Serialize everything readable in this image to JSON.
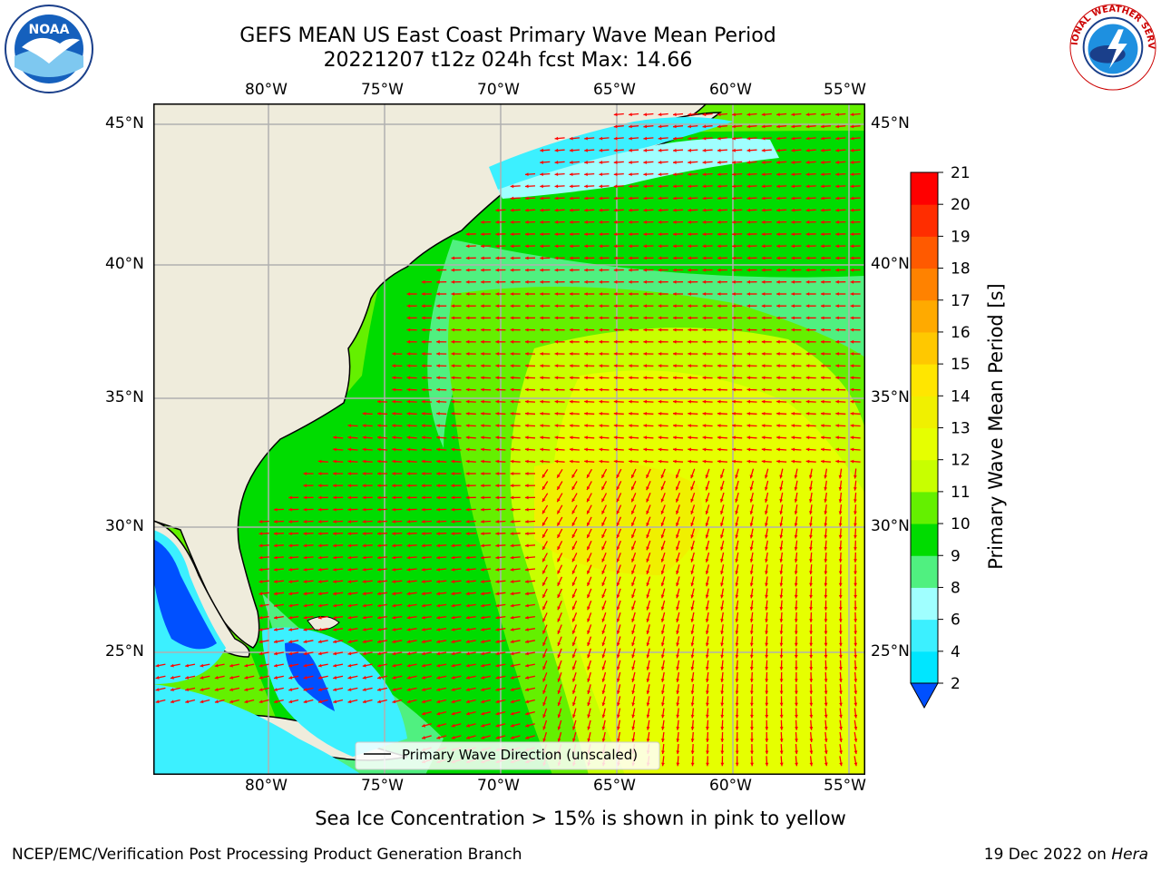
{
  "header": {
    "title_line1": "GEFS MEAN US East Coast Primary Wave Mean Period",
    "title_line2": "20221207 t12z 024h fcst   Max: 14.66"
  },
  "logos": {
    "left": "NOAA",
    "right": "NATIONAL WEATHER SERVICE"
  },
  "map": {
    "lon_labels": [
      "80°W",
      "75°W",
      "70°W",
      "65°W",
      "60°W",
      "55°W"
    ],
    "lat_labels": [
      "45°N",
      "40°N",
      "35°N",
      "30°N",
      "25°N"
    ],
    "legend_label": "Primary Wave Direction (unscaled)",
    "colors": {
      "land": "#efecdc",
      "coast": "#000000",
      "grid": "#b0b0b0",
      "arrow": "#ff0000"
    }
  },
  "colorbar": {
    "title": "Primary Wave Mean Period [s]",
    "tick_labels": [
      "2",
      "4",
      "6",
      "8",
      "9",
      "10",
      "11",
      "12",
      "13",
      "14",
      "15",
      "16",
      "17",
      "18",
      "19",
      "20",
      "21"
    ],
    "colors": [
      "#0050ff",
      "#00e6ff",
      "#3cf0ff",
      "#a0ffff",
      "#50f080",
      "#00dc00",
      "#64f000",
      "#c8ff00",
      "#e6ff00",
      "#f0f000",
      "#ffe600",
      "#ffc800",
      "#ffaa00",
      "#ff8200",
      "#ff5a00",
      "#ff2d00",
      "#ff0000"
    ]
  },
  "footer": {
    "note": "Sea Ice Concentration > 15% is shown in pink to yellow",
    "credit_left": "NCEP/EMC/Verification Post Processing Product Generation Branch",
    "credit_right_prefix": "19 Dec 2022 on",
    "credit_right_host": "Hera"
  }
}
